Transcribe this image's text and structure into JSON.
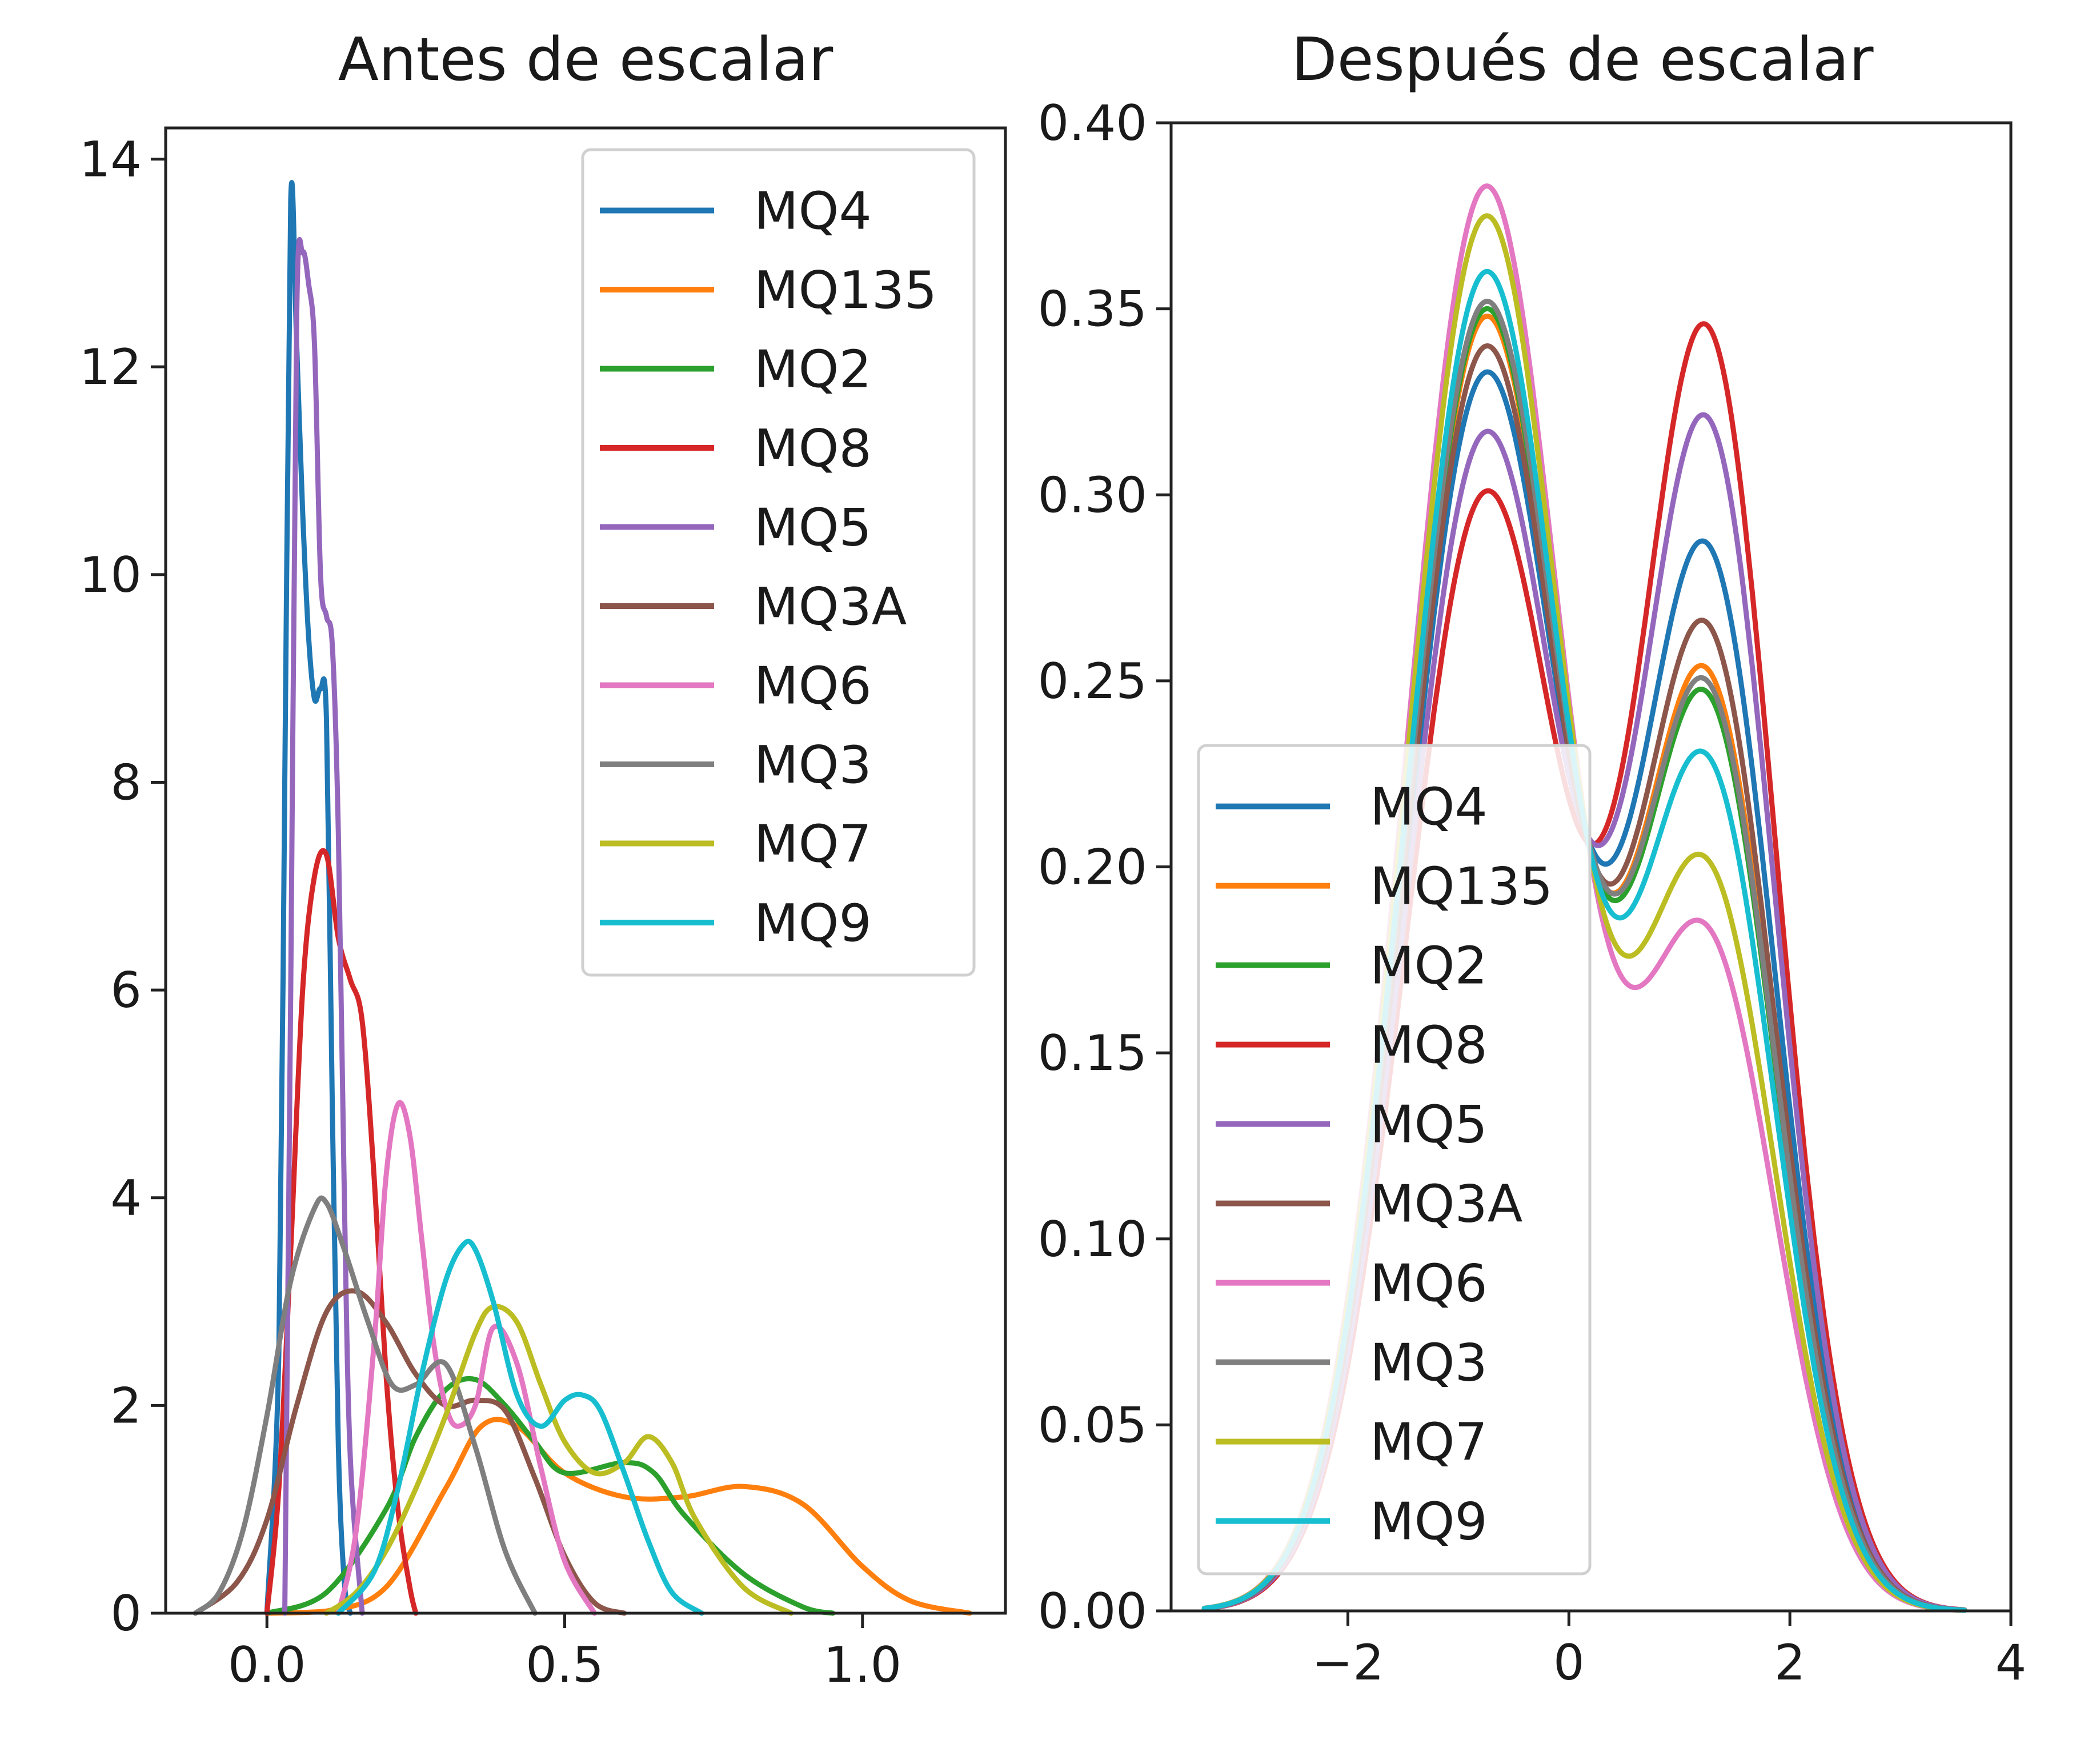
{
  "colors": {
    "MQ4": "#1f77b4",
    "MQ135": "#ff7f0e",
    "MQ2": "#2ca02c",
    "MQ8": "#d62728",
    "MQ5": "#9467bd",
    "MQ3A": "#8c564b",
    "MQ6": "#e377c2",
    "MQ3": "#7f7f7f",
    "MQ7": "#bcbd22",
    "MQ9": "#17becf"
  },
  "chart_data": [
    {
      "type": "line",
      "title": "Antes de escalar",
      "xlabel": "",
      "ylabel": "",
      "xlim": [
        -0.17,
        1.24
      ],
      "ylim": [
        0,
        14.3
      ],
      "xticks": [
        0.0,
        0.5,
        1.0
      ],
      "xtick_labels": [
        "0.0",
        "0.5",
        "1.0"
      ],
      "yticks": [
        0,
        2,
        4,
        6,
        8,
        10,
        12,
        14
      ],
      "ytick_labels": [
        "0",
        "2",
        "4",
        "6",
        "8",
        "10",
        "12",
        "14"
      ],
      "grid": false,
      "legend_position": "upper right",
      "series": [
        {
          "name": "MQ4",
          "x": [
            0.0,
            0.02,
            0.03,
            0.04,
            0.05,
            0.06,
            0.07,
            0.08,
            0.09,
            0.1,
            0.11,
            0.12,
            0.13,
            0.14
          ],
          "y": [
            0,
            2.5,
            8.0,
            13.6,
            12.2,
            10.6,
            9.4,
            8.8,
            8.9,
            8.6,
            4.8,
            1.6,
            0.3,
            0
          ]
        },
        {
          "name": "MQ135",
          "x": [
            0.0,
            0.1,
            0.2,
            0.3,
            0.36,
            0.42,
            0.5,
            0.6,
            0.7,
            0.8,
            0.9,
            1.0,
            1.08,
            1.18
          ],
          "y": [
            0,
            0.02,
            0.25,
            1.2,
            1.8,
            1.8,
            1.35,
            1.12,
            1.12,
            1.22,
            1.05,
            0.45,
            0.12,
            0
          ]
        },
        {
          "name": "MQ2",
          "x": [
            0.0,
            0.1,
            0.2,
            0.25,
            0.3,
            0.35,
            0.4,
            0.45,
            0.5,
            0.6,
            0.65,
            0.7,
            0.8,
            0.9,
            0.95
          ],
          "y": [
            0,
            0.2,
            1.0,
            1.7,
            2.15,
            2.25,
            2.0,
            1.65,
            1.35,
            1.45,
            1.35,
            0.95,
            0.38,
            0.06,
            0
          ]
        },
        {
          "name": "MQ8",
          "x": [
            0.0,
            0.02,
            0.04,
            0.06,
            0.08,
            0.1,
            0.12,
            0.14,
            0.16,
            0.18,
            0.2,
            0.22,
            0.24,
            0.25
          ],
          "y": [
            0,
            1.2,
            3.5,
            6.0,
            7.1,
            7.3,
            6.5,
            6.1,
            5.7,
            4.2,
            2.3,
            1.0,
            0.25,
            0
          ]
        },
        {
          "name": "MQ5",
          "x": [
            0.03,
            0.04,
            0.05,
            0.06,
            0.07,
            0.08,
            0.09,
            0.1,
            0.11,
            0.12,
            0.13,
            0.14,
            0.16
          ],
          "y": [
            0,
            6.0,
            12.5,
            13.1,
            12.8,
            12.2,
            10.0,
            9.6,
            9.3,
            7.5,
            4.0,
            1.5,
            0
          ]
        },
        {
          "name": "MQ3A",
          "x": [
            -0.12,
            -0.05,
            0.0,
            0.05,
            0.1,
            0.15,
            0.2,
            0.25,
            0.3,
            0.35,
            0.4,
            0.45,
            0.5,
            0.55,
            0.6
          ],
          "y": [
            0,
            0.3,
            0.9,
            2.0,
            2.9,
            3.1,
            2.8,
            2.3,
            2.0,
            2.05,
            1.95,
            1.3,
            0.55,
            0.1,
            0
          ]
        },
        {
          "name": "MQ6",
          "x": [
            0.12,
            0.15,
            0.18,
            0.2,
            0.22,
            0.24,
            0.26,
            0.28,
            0.3,
            0.32,
            0.35,
            0.38,
            0.42,
            0.46,
            0.5,
            0.55
          ],
          "y": [
            0,
            0.8,
            2.6,
            4.2,
            4.9,
            4.6,
            3.6,
            2.6,
            2.0,
            1.8,
            2.0,
            2.75,
            2.4,
            1.4,
            0.5,
            0
          ]
        },
        {
          "name": "MQ3",
          "x": [
            -0.12,
            -0.08,
            -0.04,
            0.0,
            0.04,
            0.08,
            0.1,
            0.13,
            0.17,
            0.21,
            0.25,
            0.3,
            0.35,
            0.4,
            0.45
          ],
          "y": [
            0,
            0.2,
            0.8,
            1.9,
            3.2,
            3.9,
            3.95,
            3.5,
            2.8,
            2.2,
            2.2,
            2.4,
            1.6,
            0.6,
            0
          ]
        },
        {
          "name": "MQ7",
          "x": [
            0.1,
            0.15,
            0.2,
            0.25,
            0.3,
            0.35,
            0.38,
            0.42,
            0.46,
            0.5,
            0.55,
            0.6,
            0.64,
            0.68,
            0.72,
            0.8,
            0.88
          ],
          "y": [
            0,
            0.2,
            0.6,
            1.2,
            1.9,
            2.7,
            2.95,
            2.8,
            2.2,
            1.65,
            1.35,
            1.45,
            1.7,
            1.45,
            0.9,
            0.25,
            0
          ]
        },
        {
          "name": "MQ9",
          "x": [
            0.12,
            0.18,
            0.22,
            0.26,
            0.3,
            0.33,
            0.35,
            0.38,
            0.42,
            0.46,
            0.5,
            0.53,
            0.56,
            0.6,
            0.64,
            0.68,
            0.73
          ],
          "y": [
            0,
            0.4,
            1.2,
            2.3,
            3.2,
            3.55,
            3.5,
            3.0,
            2.1,
            1.8,
            2.05,
            2.1,
            1.95,
            1.35,
            0.7,
            0.2,
            0
          ]
        }
      ]
    },
    {
      "type": "line",
      "title": "Después de escalar",
      "xlabel": "",
      "ylabel": "",
      "xlim": [
        -3.6,
        4.0
      ],
      "ylim": [
        0.0,
        0.4
      ],
      "xticks": [
        -2,
        0,
        2,
        4
      ],
      "xtick_labels": [
        "−2",
        "0",
        "2",
        "4"
      ],
      "yticks": [
        0.0,
        0.05,
        0.1,
        0.15,
        0.2,
        0.25,
        0.3,
        0.35,
        0.4
      ],
      "ytick_labels": [
        "0.00",
        "0.05",
        "0.10",
        "0.15",
        "0.20",
        "0.25",
        "0.30",
        "0.35",
        "0.40"
      ],
      "grid": false,
      "legend_position": "lower left",
      "series": [
        {
          "name": "MQ4",
          "peak": 0.333,
          "valley": 0.213
        },
        {
          "name": "MQ135",
          "peak": 0.348,
          "valley": 0.198
        },
        {
          "name": "MQ2",
          "peak": 0.35,
          "valley": 0.195
        },
        {
          "name": "MQ8",
          "peak": 0.301,
          "valley": 0.238
        },
        {
          "name": "MQ5",
          "peak": 0.317,
          "valley": 0.228
        },
        {
          "name": "MQ3A",
          "peak": 0.34,
          "valley": 0.203
        },
        {
          "name": "MQ6",
          "peak": 0.383,
          "valley": 0.168
        },
        {
          "name": "MQ3",
          "peak": 0.352,
          "valley": 0.197
        },
        {
          "name": "MQ7",
          "peak": 0.375,
          "valley": 0.176
        },
        {
          "name": "MQ9",
          "peak": 0.36,
          "valley": 0.188
        }
      ]
    }
  ]
}
